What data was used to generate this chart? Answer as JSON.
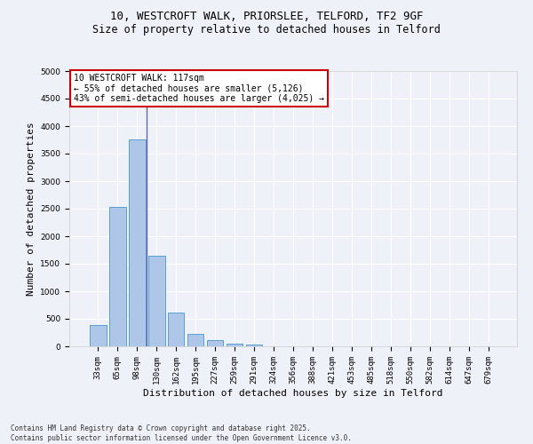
{
  "title_line1": "10, WESTCROFT WALK, PRIORSLEE, TELFORD, TF2 9GF",
  "title_line2": "Size of property relative to detached houses in Telford",
  "xlabel": "Distribution of detached houses by size in Telford",
  "ylabel": "Number of detached properties",
  "categories": [
    "33sqm",
    "65sqm",
    "98sqm",
    "130sqm",
    "162sqm",
    "195sqm",
    "227sqm",
    "259sqm",
    "291sqm",
    "324sqm",
    "356sqm",
    "388sqm",
    "421sqm",
    "453sqm",
    "485sqm",
    "518sqm",
    "550sqm",
    "582sqm",
    "614sqm",
    "647sqm",
    "679sqm"
  ],
  "values": [
    390,
    2540,
    3760,
    1650,
    610,
    230,
    105,
    55,
    30,
    0,
    0,
    0,
    0,
    0,
    0,
    0,
    0,
    0,
    0,
    0,
    0
  ],
  "bar_color": "#aec6e8",
  "bar_edge_color": "#5a9fd4",
  "vline_x_index": 2,
  "vline_color": "#6666aa",
  "annotation_box_text": "10 WESTCROFT WALK: 117sqm\n← 55% of detached houses are smaller (5,126)\n43% of semi-detached houses are larger (4,025) →",
  "box_edge_color": "#cc0000",
  "ylim": [
    0,
    5000
  ],
  "yticks": [
    0,
    500,
    1000,
    1500,
    2000,
    2500,
    3000,
    3500,
    4000,
    4500,
    5000
  ],
  "footnote": "Contains HM Land Registry data © Crown copyright and database right 2025.\nContains public sector information licensed under the Open Government Licence v3.0.",
  "background_color": "#eef2f8",
  "grid_color": "#ffffff",
  "title_fontsize": 9,
  "subtitle_fontsize": 8.5,
  "tick_fontsize": 6.5,
  "label_fontsize": 8,
  "annotation_fontsize": 7,
  "footnote_fontsize": 5.5
}
